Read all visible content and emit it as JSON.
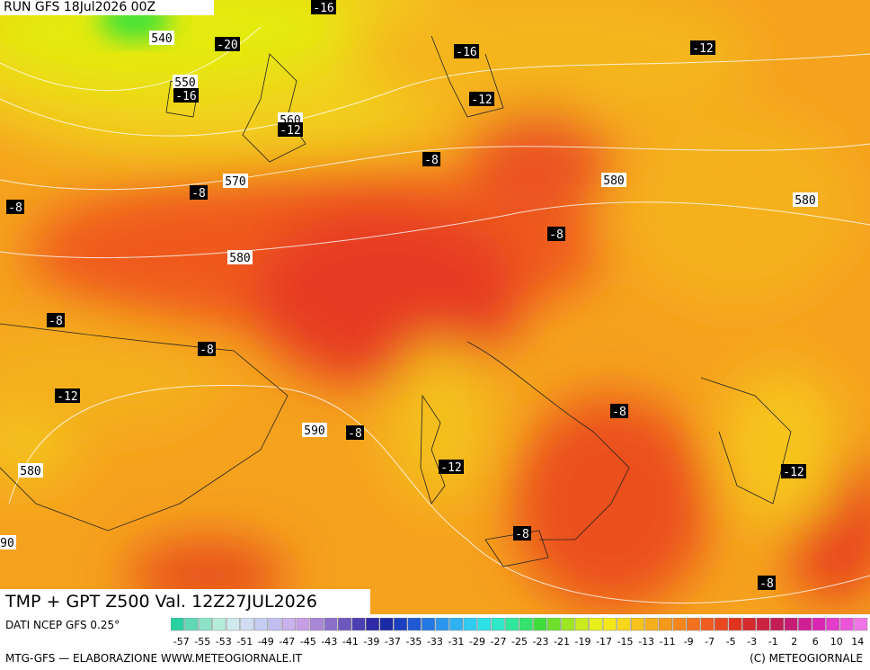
{
  "header": {
    "run": "RUN GFS 18Jul2026 00Z"
  },
  "title": "TMP + GPT Z500 Val. 12Z27JUL2026",
  "source": "DATI NCEP GFS 0.25°",
  "footer": "MTG-GFS — ELABORAZIONE WWW.METEOGIORNALE.IT",
  "credit": "(C) METEOGIORNALE",
  "scale": {
    "labels": [
      -57,
      -55,
      -53,
      -51,
      -49,
      -47,
      -45,
      -43,
      -41,
      -39,
      -37,
      -35,
      -33,
      -31,
      -29,
      -27,
      -25,
      -23,
      -21,
      -19,
      -17,
      -15,
      -13,
      -11,
      -9,
      -7,
      -5,
      -3,
      -1,
      2,
      6,
      10,
      14
    ]
  },
  "map": {
    "labels": [
      "-16",
      "540",
      "-20",
      "-16",
      "-12",
      "550",
      "-16",
      "-12",
      "560",
      "-12",
      "-8",
      "570",
      "-8",
      "580",
      "580",
      "-8",
      "-8",
      "580",
      "-8",
      "-8",
      "-12",
      "-8",
      "590",
      "-8",
      "-12",
      "580",
      "-12",
      "90",
      "-8",
      "-8"
    ]
  }
}
